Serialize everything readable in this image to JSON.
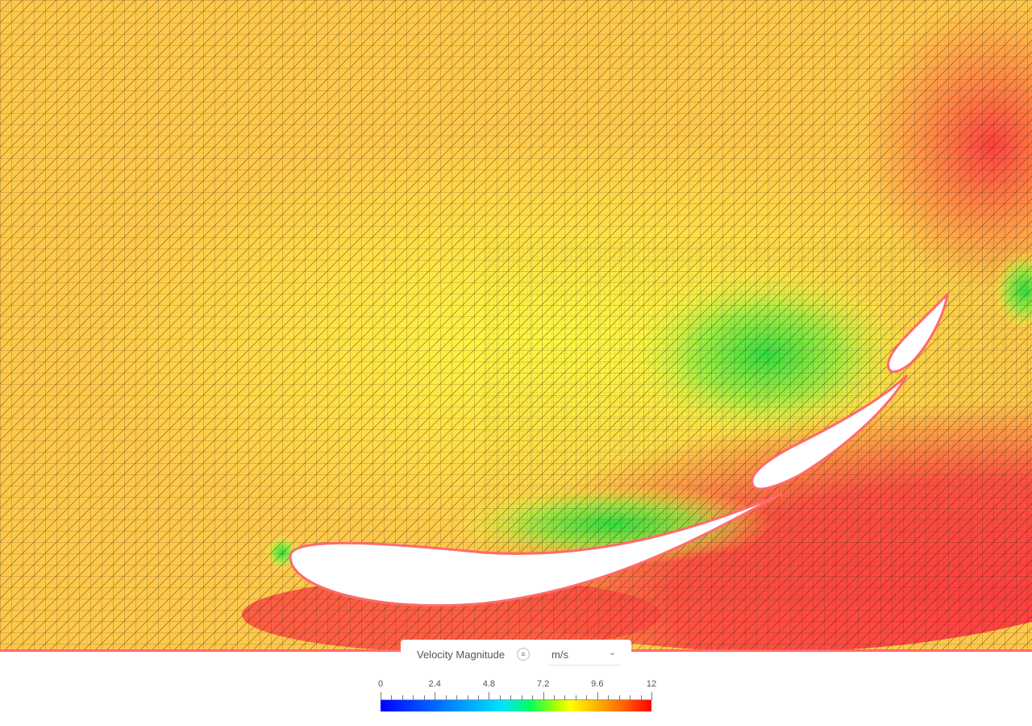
{
  "legend": {
    "title": "Velocity Magnitude",
    "menu_icon": "list-icon",
    "unit": "m/s",
    "unit_icon": "chevron-down-icon",
    "min": 0,
    "max": 12,
    "ticks": [
      "0",
      "2.4",
      "4.8",
      "7.2",
      "9.6",
      "12"
    ],
    "minor_per_major": 4,
    "colormap": [
      "#0000ff",
      "#00e5ff",
      "#00ff60",
      "#ffff00",
      "#ffb000",
      "#ff0000"
    ]
  },
  "field_colors": {
    "freestream": "#ffc84a",
    "high": "#ff4a40",
    "low": "#40e040",
    "mesh": "#222222",
    "airfoil_fill": "#ffffff",
    "airfoil_edge": "#ff6a6a"
  }
}
